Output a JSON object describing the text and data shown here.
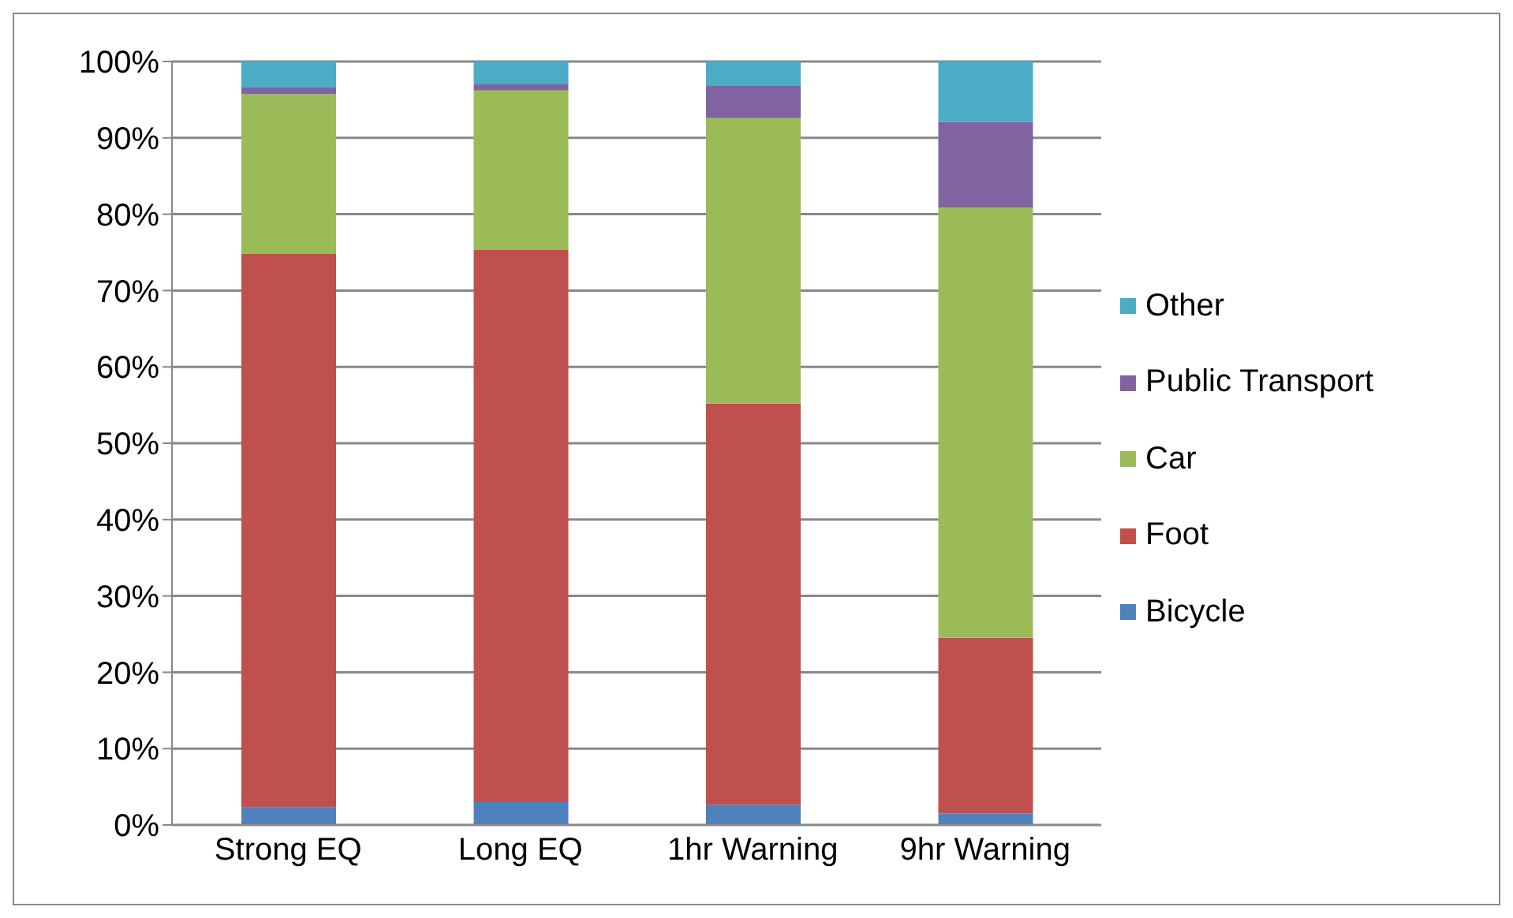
{
  "chart_data": {
    "type": "bar",
    "stacked": true,
    "categories": [
      "Strong EQ",
      "Long EQ",
      "1hr Warning",
      "9hr Warning"
    ],
    "series": [
      {
        "name": "Bicycle",
        "color": "#4f81bd",
        "values": [
          2.3,
          3.0,
          2.6,
          1.5
        ]
      },
      {
        "name": "Foot",
        "color": "#c0504d",
        "values": [
          72.5,
          72.3,
          52.6,
          23.0
        ]
      },
      {
        "name": "Car",
        "color": "#9bbb59",
        "values": [
          20.9,
          20.9,
          37.4,
          56.4
        ]
      },
      {
        "name": "Public Transport",
        "color": "#8064a2",
        "values": [
          0.9,
          0.8,
          4.2,
          11.2
        ]
      },
      {
        "name": "Other",
        "color": "#4bacc6",
        "values": [
          3.4,
          3.0,
          3.2,
          7.9
        ]
      }
    ],
    "ylim": [
      0,
      100
    ],
    "yticks": [
      {
        "value": 0,
        "label": "0%"
      },
      {
        "value": 10,
        "label": "10%"
      },
      {
        "value": 20,
        "label": "20%"
      },
      {
        "value": 30,
        "label": "30%"
      },
      {
        "value": 40,
        "label": "40%"
      },
      {
        "value": 50,
        "label": "50%"
      },
      {
        "value": 60,
        "label": "60%"
      },
      {
        "value": 70,
        "label": "70%"
      },
      {
        "value": 80,
        "label": "80%"
      },
      {
        "value": 90,
        "label": "90%"
      },
      {
        "value": 100,
        "label": "100%"
      }
    ],
    "grid": "y",
    "legend": "right"
  }
}
